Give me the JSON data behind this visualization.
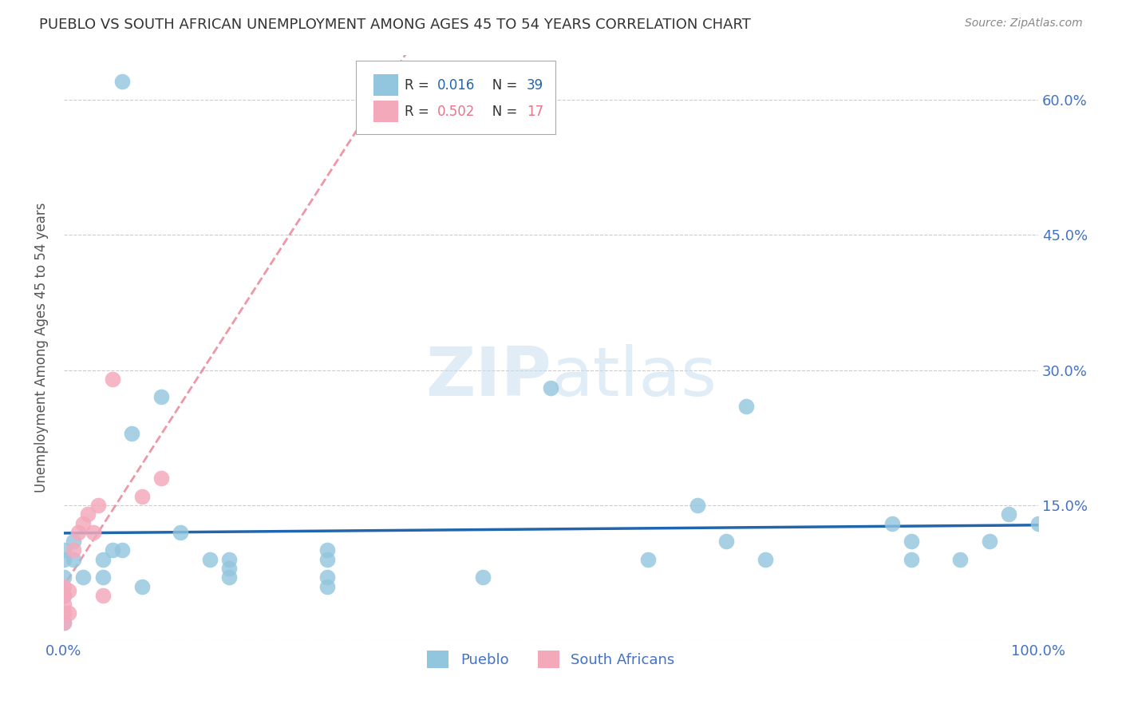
{
  "title": "PUEBLO VS SOUTH AFRICAN UNEMPLOYMENT AMONG AGES 45 TO 54 YEARS CORRELATION CHART",
  "source": "Source: ZipAtlas.com",
  "ylabel": "Unemployment Among Ages 45 to 54 years",
  "xlim": [
    0.0,
    1.0
  ],
  "ylim": [
    0.0,
    0.65
  ],
  "yticks": [
    0.0,
    0.15,
    0.3,
    0.45,
    0.6
  ],
  "ytick_labels": [
    "",
    "15.0%",
    "30.0%",
    "45.0%",
    "60.0%"
  ],
  "xticks": [
    0.0,
    0.25,
    0.5,
    0.75,
    1.0
  ],
  "xtick_labels": [
    "0.0%",
    "",
    "",
    "",
    "100.0%"
  ],
  "watermark_zip": "ZIP",
  "watermark_atlas": "atlas",
  "pueblo_color": "#92c5de",
  "sa_color": "#f4a9bb",
  "pueblo_trend_color": "#2166ac",
  "sa_trend_color": "#e8748a",
  "title_color": "#333333",
  "axis_label_color": "#555555",
  "tick_color": "#4472C4",
  "grid_color": "#cccccc",
  "pueblo_x": [
    0.06,
    0.0,
    0.0,
    0.02,
    0.01,
    0.0,
    0.01,
    0.0,
    0.0,
    0.04,
    0.07,
    0.05,
    0.04,
    0.08,
    0.06,
    0.12,
    0.15,
    0.1,
    0.17,
    0.17,
    0.17,
    0.27,
    0.27,
    0.27,
    0.27,
    0.43,
    0.5,
    0.6,
    0.65,
    0.68,
    0.7,
    0.72,
    0.85,
    0.87,
    0.87,
    0.92,
    0.95,
    0.97,
    1.0
  ],
  "pueblo_y": [
    0.62,
    0.02,
    0.05,
    0.07,
    0.09,
    0.1,
    0.11,
    0.09,
    0.07,
    0.09,
    0.23,
    0.1,
    0.07,
    0.06,
    0.1,
    0.12,
    0.09,
    0.27,
    0.08,
    0.09,
    0.07,
    0.07,
    0.1,
    0.09,
    0.06,
    0.07,
    0.28,
    0.09,
    0.15,
    0.11,
    0.26,
    0.09,
    0.13,
    0.11,
    0.09,
    0.09,
    0.11,
    0.14,
    0.13
  ],
  "sa_x": [
    0.0,
    0.0,
    0.0,
    0.0,
    0.0,
    0.005,
    0.005,
    0.01,
    0.015,
    0.02,
    0.025,
    0.03,
    0.035,
    0.04,
    0.05,
    0.08,
    0.1
  ],
  "sa_y": [
    0.02,
    0.03,
    0.04,
    0.05,
    0.06,
    0.03,
    0.055,
    0.1,
    0.12,
    0.13,
    0.14,
    0.12,
    0.15,
    0.05,
    0.29,
    0.16,
    0.18
  ]
}
